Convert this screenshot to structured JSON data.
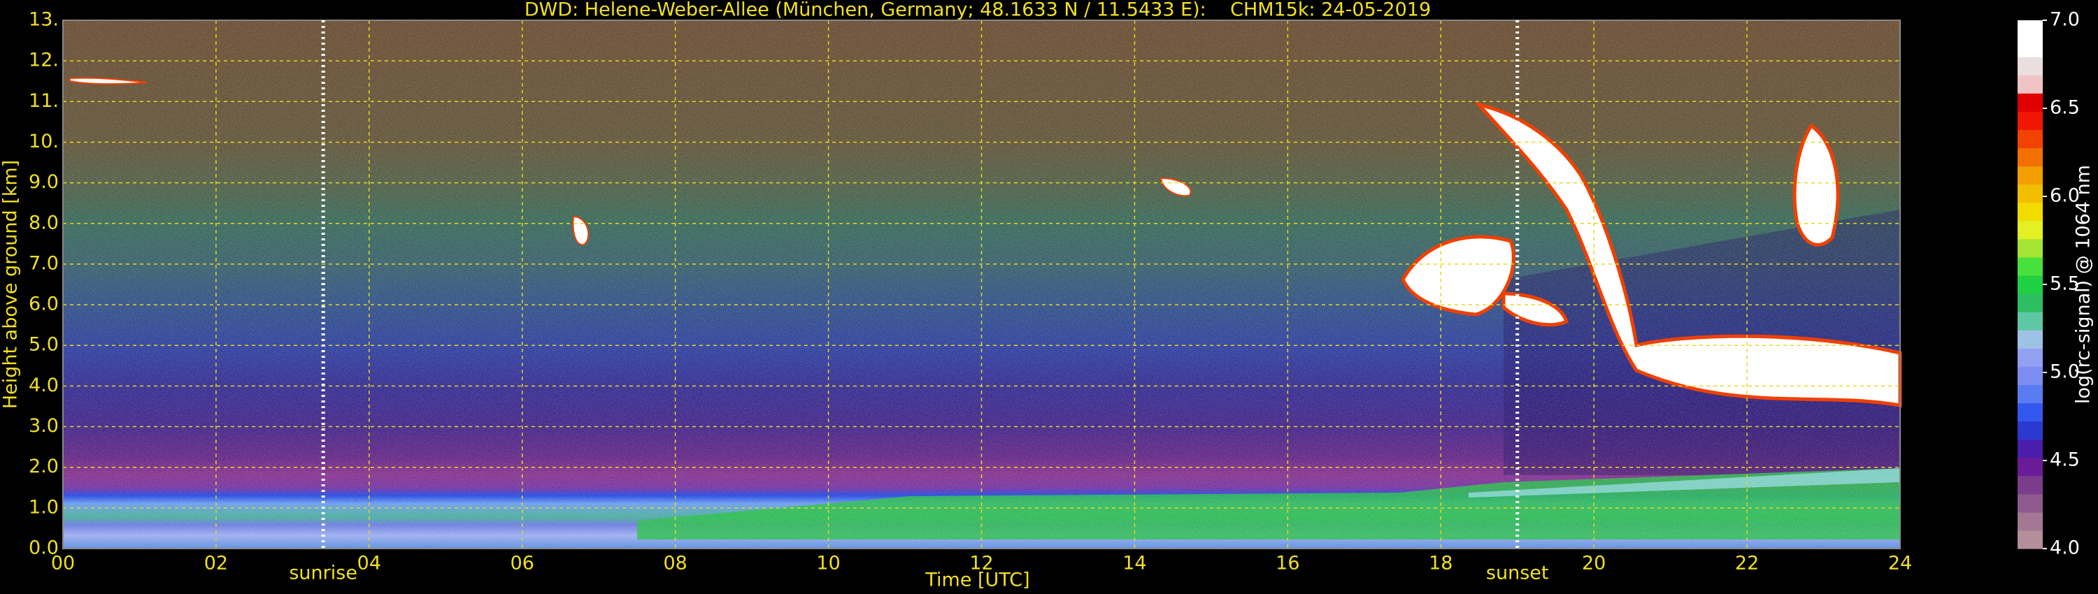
{
  "chart_data": {
    "type": "heatmap",
    "title": "DWD: Helene-Weber-Allee (München, Germany; 48.1633 N / 11.5433 E):    CHM15k: 24-05-2019",
    "x_label": "Time [UTC]",
    "y_label": "Height above ground [km]",
    "colorbar_label": "log(rc-signal) @ 1064 nm",
    "xlim": [
      0,
      24
    ],
    "xticks": [
      {
        "value": 0,
        "label": "00"
      },
      {
        "value": 2,
        "label": "02"
      },
      {
        "value": 4,
        "label": "04"
      },
      {
        "value": 6,
        "label": "06"
      },
      {
        "value": 8,
        "label": "08"
      },
      {
        "value": 10,
        "label": "10"
      },
      {
        "value": 12,
        "label": "12"
      },
      {
        "value": 14,
        "label": "14"
      },
      {
        "value": 16,
        "label": "16"
      },
      {
        "value": 18,
        "label": "18"
      },
      {
        "value": 20,
        "label": "20"
      },
      {
        "value": 22,
        "label": "22"
      },
      {
        "value": 24,
        "label": "24"
      }
    ],
    "ylim": [
      0,
      13
    ],
    "yticks": [
      {
        "value": 0,
        "label": "0.0"
      },
      {
        "value": 1,
        "label": "1.0"
      },
      {
        "value": 2,
        "label": "2.0"
      },
      {
        "value": 3,
        "label": "3.0"
      },
      {
        "value": 4,
        "label": "4.0"
      },
      {
        "value": 5,
        "label": "5.0"
      },
      {
        "value": 6,
        "label": "6.0"
      },
      {
        "value": 7,
        "label": "7.0"
      },
      {
        "value": 8,
        "label": "8.0"
      },
      {
        "value": 9,
        "label": "9.0"
      },
      {
        "value": 10,
        "label": "10."
      },
      {
        "value": 11,
        "label": "11."
      },
      {
        "value": 12,
        "label": "12."
      },
      {
        "value": 13,
        "label": "13."
      }
    ],
    "zlim": [
      4,
      7
    ],
    "zticks": [
      {
        "value": 4,
        "label": "4.0"
      },
      {
        "value": 4.5,
        "label": "4.5"
      },
      {
        "value": 5,
        "label": "5.0"
      },
      {
        "value": 5.5,
        "label": "5.5"
      },
      {
        "value": 6,
        "label": "6.0"
      },
      {
        "value": 6.5,
        "label": "6.5"
      },
      {
        "value": 7,
        "label": "7.0"
      }
    ],
    "colormap": [
      "#b48e9a",
      "#a47894",
      "#8c5a8e",
      "#7c3c8c",
      "#6a1c98",
      "#4a1ea8",
      "#2a3ad0",
      "#3458ee",
      "#5a7cf2",
      "#7c8ef2",
      "#92a0f2",
      "#9ec2e4",
      "#5ec8a4",
      "#2ebe62",
      "#1ed042",
      "#48e03c",
      "#a4e432",
      "#e2f024",
      "#f2dc00",
      "#f2be00",
      "#f29e00",
      "#f27000",
      "#f24200",
      "#f21600",
      "#e00000",
      "#f0c4c4",
      "#ebdede",
      "#ffffff",
      "#ffffff"
    ],
    "grid": true,
    "annotations": [
      {
        "text": "sunrise",
        "x": 3.4
      },
      {
        "text": "sunset",
        "x": 19.0
      }
    ]
  }
}
